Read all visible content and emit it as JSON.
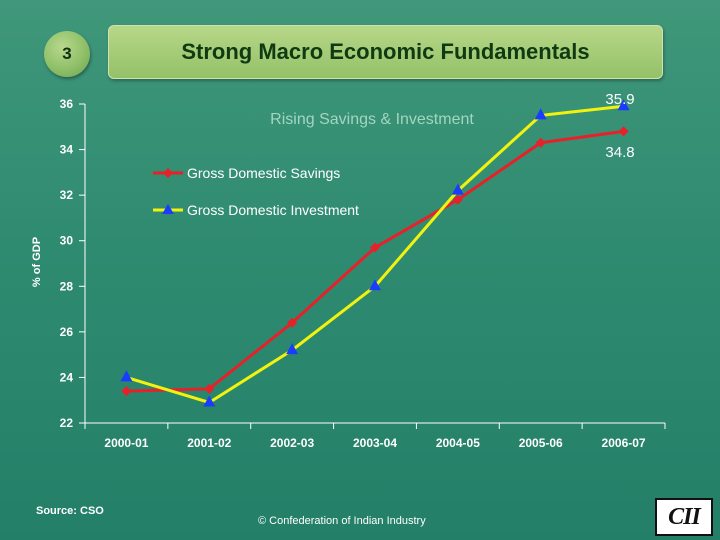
{
  "slide": {
    "number": "3",
    "title": "Strong Macro Economic Fundamentals"
  },
  "chart_data": {
    "type": "line",
    "subtitle": "Rising Savings & Investment",
    "ylabel": "% of GDP",
    "xlabel": "",
    "categories": [
      "2000-01",
      "2001-02",
      "2002-03",
      "2003-04",
      "2004-05",
      "2005-06",
      "2006-07"
    ],
    "ylim": [
      22,
      36
    ],
    "yticks": [
      "22",
      "24",
      "26",
      "28",
      "30",
      "32",
      "34",
      "36"
    ],
    "grid": false,
    "legend_position": "top-left",
    "series": [
      {
        "name": "Gross Domestic Savings",
        "color": "#e8202a",
        "marker": "diamond",
        "values": [
          23.4,
          23.5,
          26.4,
          29.7,
          31.8,
          34.3,
          34.8
        ]
      },
      {
        "name": "Gross Domestic Investment",
        "color": "#f2f20e",
        "marker": "triangle",
        "marker_color": "#1a3cff",
        "values": [
          24.0,
          22.9,
          25.2,
          28.0,
          32.2,
          35.5,
          35.9
        ]
      }
    ],
    "annotations": [
      "35.9",
      "34.8"
    ]
  },
  "footer": {
    "source": "Source: CSO",
    "copyright": "© Confederation of Indian Industry",
    "logo_text": "CII"
  }
}
